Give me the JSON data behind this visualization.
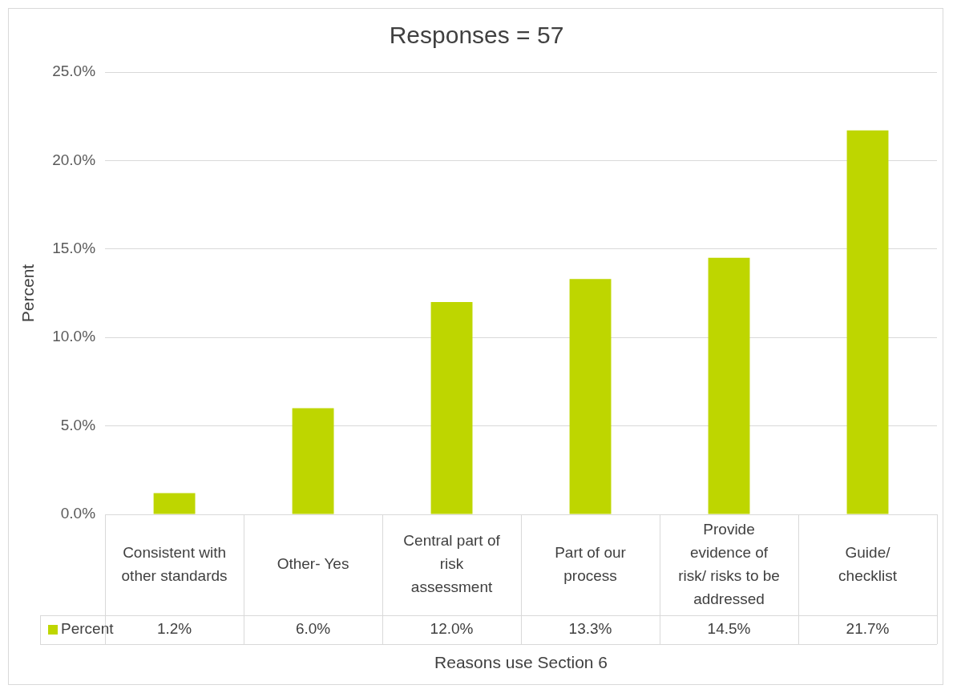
{
  "chart_data": {
    "type": "bar",
    "title": "Responses = 57",
    "xlabel": "Reasons use Section 6",
    "ylabel": "Percent",
    "categories": [
      "Consistent with other standards",
      "Other- Yes",
      "Central part of risk assessment",
      "Part of our process",
      "Provide evidence of risk/ risks to be addressed",
      "Guide/ checklist"
    ],
    "series": [
      {
        "name": "Percent",
        "color": "#bed600",
        "values": [
          1.2,
          6.0,
          12.0,
          13.3,
          14.5,
          21.7
        ],
        "value_labels": [
          "1.2%",
          "6.0%",
          "12.0%",
          "13.3%",
          "14.5%",
          "21.7%"
        ]
      }
    ],
    "ylim": [
      0,
      25
    ],
    "yticks": [
      {
        "value": 0,
        "label": "0.0%"
      },
      {
        "value": 5,
        "label": "5.0%"
      },
      {
        "value": 10,
        "label": "10.0%"
      },
      {
        "value": 15,
        "label": "15.0%"
      },
      {
        "value": 20,
        "label": "20.0%"
      },
      {
        "value": 25,
        "label": "25.0%"
      }
    ],
    "grid": "y",
    "legend": "bottom"
  }
}
